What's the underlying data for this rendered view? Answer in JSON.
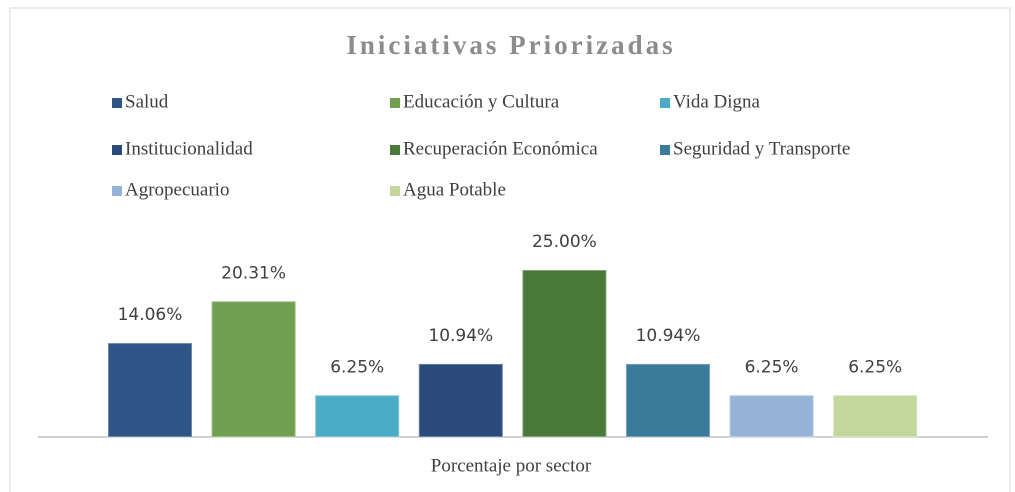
{
  "chart_data": {
    "type": "bar",
    "title": "Iniciativas Priorizadas",
    "xlabel": "Porcentaje por sector",
    "categories": [
      null
    ],
    "series": [
      {
        "name": "Salud",
        "color": "#2f5486",
        "values": [
          14.06
        ],
        "value_labels": [
          "14.06%"
        ]
      },
      {
        "name": "Educación y Cultura",
        "color": "#70a04f",
        "values": [
          20.31
        ],
        "value_labels": [
          "20.31%"
        ]
      },
      {
        "name": "Vida Digna",
        "color": "#4bacc6",
        "values": [
          6.25
        ],
        "value_labels": [
          "6.25%"
        ]
      },
      {
        "name": "Institucionalidad",
        "color": "#2a4a7a",
        "values": [
          10.94
        ],
        "value_labels": [
          "10.94%"
        ]
      },
      {
        "name": "Recuperación Económica",
        "color": "#4a7a3a",
        "values": [
          25.0
        ],
        "value_labels": [
          "25.00%"
        ]
      },
      {
        "name": "Seguridad y Transporte",
        "color": "#3a7a9a",
        "values": [
          10.94
        ],
        "value_labels": [
          "10.94%"
        ]
      },
      {
        "name": "Agropecuario",
        "color": "#95b3d7",
        "values": [
          6.25
        ],
        "value_labels": [
          "6.25%"
        ]
      },
      {
        "name": "Agua Potable",
        "color": "#c3d69b",
        "values": [
          6.25
        ],
        "value_labels": [
          "6.25%"
        ]
      }
    ]
  }
}
